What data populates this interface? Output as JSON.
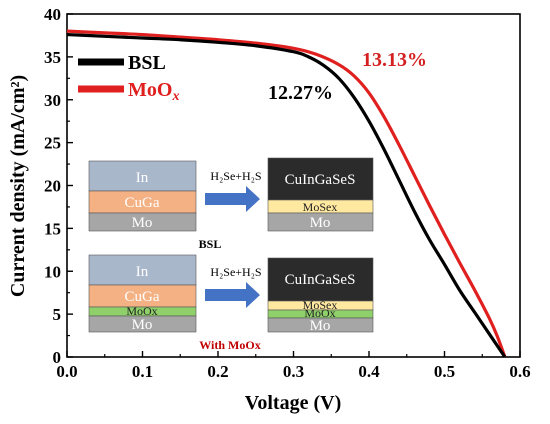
{
  "chart_data": {
    "type": "line",
    "title": "",
    "xlabel": "Voltage (V)",
    "ylabel": "Current density (mA/cm²)",
    "xlim": [
      0.0,
      0.6
    ],
    "ylim": [
      0,
      40
    ],
    "xticks": [
      "0.0",
      "0.1",
      "0.2",
      "0.3",
      "0.4",
      "0.5",
      "0.6"
    ],
    "yticks": [
      "0",
      "5",
      "10",
      "15",
      "20",
      "25",
      "30",
      "35",
      "40"
    ],
    "grid": false,
    "legend_position": "top-left",
    "series": [
      {
        "name": "BSL",
        "color": "#000000",
        "efficiency_label": "12.27%",
        "x": [
          0,
          0.05,
          0.1,
          0.15,
          0.2,
          0.25,
          0.3,
          0.32,
          0.34,
          0.36,
          0.38,
          0.4,
          0.42,
          0.44,
          0.46,
          0.48,
          0.5,
          0.52,
          0.54,
          0.56,
          0.57,
          0.58
        ],
        "y": [
          37.6,
          37.4,
          37.2,
          37.0,
          36.7,
          36.3,
          35.6,
          35.0,
          34.0,
          32.5,
          30.3,
          27.5,
          24.2,
          20.6,
          17.0,
          13.7,
          10.8,
          7.8,
          5.2,
          2.6,
          1.3,
          0
        ]
      },
      {
        "name": "MoOx",
        "name_main": "MoO",
        "name_sub": "x",
        "color": "#e01f1f",
        "efficiency_label": "13.13%",
        "x": [
          0,
          0.05,
          0.1,
          0.15,
          0.2,
          0.25,
          0.3,
          0.33,
          0.36,
          0.38,
          0.4,
          0.42,
          0.44,
          0.46,
          0.48,
          0.5,
          0.52,
          0.54,
          0.56,
          0.57,
          0.58
        ],
        "y": [
          38.0,
          37.8,
          37.6,
          37.3,
          37.0,
          36.6,
          36.0,
          35.3,
          34.1,
          32.8,
          30.8,
          28.0,
          24.7,
          21.2,
          17.7,
          14.3,
          11.0,
          7.8,
          4.4,
          2.4,
          0
        ]
      }
    ]
  },
  "inset": {
    "top": {
      "layers_before": [
        "In",
        "CuGa",
        "Mo"
      ],
      "process": "H₂Se+H₂S",
      "layers_after": [
        "CuInGaSeS",
        "MoSex",
        "Mo"
      ],
      "caption": "BSL"
    },
    "bottom": {
      "layers_before": [
        "In",
        "CuGa",
        "MoOx",
        "Mo"
      ],
      "process": "H₂Se+H₂S",
      "layers_after": [
        "CuInGaSeS",
        "MoSex",
        "MoOx",
        "Mo"
      ],
      "caption": "With MoOx"
    },
    "colors": {
      "in": "#a9b7cb",
      "cuga": "#f4b183",
      "mo": "#a6a6a6",
      "moox": "#8fd06a",
      "cigs": "#2b2b2b",
      "mose": "#ffe9a0",
      "arrow": "#4472c4"
    }
  }
}
